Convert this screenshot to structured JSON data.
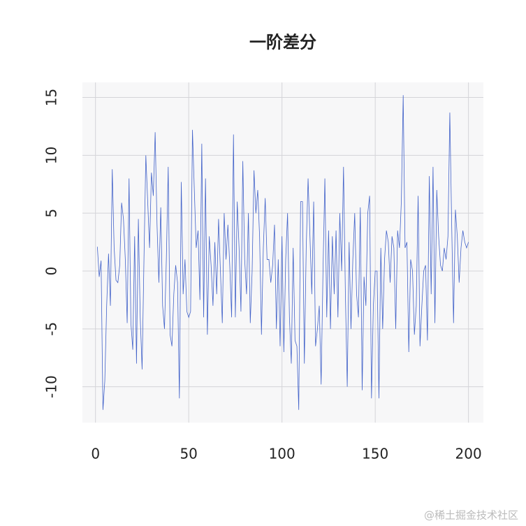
{
  "chart_data": {
    "type": "line",
    "title": "一阶差分",
    "watermark": "@稀土掘金技术社区",
    "x": [
      1,
      2,
      3,
      4,
      5,
      6,
      7,
      8,
      9,
      10,
      11,
      12,
      13,
      14,
      15,
      16,
      17,
      18,
      19,
      20,
      21,
      22,
      23,
      24,
      25,
      26,
      27,
      28,
      29,
      30,
      31,
      32,
      33,
      34,
      35,
      36,
      37,
      38,
      39,
      40,
      41,
      42,
      43,
      44,
      45,
      46,
      47,
      48,
      49,
      50,
      51,
      52,
      53,
      54,
      55,
      56,
      57,
      58,
      59,
      60,
      61,
      62,
      63,
      64,
      65,
      66,
      67,
      68,
      69,
      70,
      71,
      72,
      73,
      74,
      75,
      76,
      77,
      78,
      79,
      80,
      81,
      82,
      83,
      84,
      85,
      86,
      87,
      88,
      89,
      90,
      91,
      92,
      93,
      94,
      95,
      96,
      97,
      98,
      99,
      100,
      101,
      102,
      103,
      104,
      105,
      106,
      107,
      108,
      109,
      110,
      111,
      112,
      113,
      114,
      115,
      116,
      117,
      118,
      119,
      120,
      121,
      122,
      123,
      124,
      125,
      126,
      127,
      128,
      129,
      130,
      131,
      132,
      133,
      134,
      135,
      136,
      137,
      138,
      139,
      140,
      141,
      142,
      143,
      144,
      145,
      146,
      147,
      148,
      149,
      150,
      151,
      152,
      153,
      154,
      155,
      156,
      157,
      158,
      159,
      160,
      161,
      162,
      163,
      164,
      165,
      166,
      167,
      168,
      169,
      170,
      171,
      172,
      173,
      174,
      175,
      176,
      177,
      178,
      179,
      180,
      181,
      182,
      183,
      184,
      185,
      186,
      187,
      188,
      189,
      190,
      191,
      192,
      193,
      194,
      195,
      196,
      197,
      198,
      199,
      200
    ],
    "series": [
      {
        "color": "#4262c9",
        "values": [
          2.1,
          -0.5,
          0.9,
          -12.0,
          -9.5,
          -3.0,
          1.5,
          -3.0,
          8.8,
          2.0,
          -0.8,
          -1.0,
          0.5,
          5.9,
          4.5,
          1.0,
          -4.5,
          8.0,
          -4.5,
          -6.8,
          3.0,
          -8.0,
          4.5,
          -4.0,
          -8.5,
          1.0,
          10.0,
          6.0,
          2.0,
          8.5,
          6.5,
          12.0,
          4.0,
          -1.0,
          5.5,
          -3.0,
          -5.0,
          1.0,
          9.0,
          -5.5,
          -6.5,
          -2.0,
          0.5,
          -1.0,
          -11.0,
          7.7,
          -2.0,
          1.0,
          -3.5,
          -4.0,
          -3.5,
          12.2,
          7.0,
          2.0,
          3.5,
          -2.5,
          11.0,
          -4.0,
          8.0,
          -5.5,
          3.0,
          0.5,
          -3.0,
          2.5,
          -2.0,
          4.5,
          0.0,
          -4.5,
          5.0,
          1.0,
          4.0,
          0.5,
          -4.0,
          11.8,
          -4.0,
          6.0,
          2.0,
          -3.5,
          9.5,
          1.0,
          -2.0,
          5.0,
          -4.5,
          0.0,
          8.7,
          5.0,
          7.0,
          3.0,
          -5.5,
          2.0,
          6.3,
          1.0,
          1.0,
          -1.0,
          0.5,
          4.0,
          -5.0,
          1.0,
          -6.5,
          3.0,
          -7.0,
          1.0,
          5.0,
          -4.0,
          -8.0,
          2.0,
          -6.0,
          -6.5,
          -12.0,
          6.0,
          6.0,
          -8.0,
          2.0,
          8.0,
          3.0,
          -2.0,
          6.0,
          -6.5,
          -5.0,
          -3.0,
          -9.8,
          0.0,
          8.0,
          -4.0,
          3.5,
          -5.0,
          3.0,
          -2.0,
          3.5,
          -4.0,
          5.0,
          0.0,
          9.0,
          -2.0,
          -10.0,
          2.5,
          -5.0,
          1.0,
          5.0,
          -2.0,
          -4.0,
          5.5,
          -10.3,
          -0.5,
          -3.0,
          5.0,
          6.5,
          -11.0,
          -3.0,
          0.0,
          0.0,
          -11.0,
          2.0,
          -5.0,
          1.0,
          3.5,
          2.5,
          -1.0,
          3.0,
          2.0,
          -5.0,
          3.5,
          2.0,
          6.0,
          15.2,
          2.0,
          2.5,
          -7.0,
          1.0,
          0.0,
          -5.5,
          -3.0,
          6.5,
          -6.5,
          -3.0,
          0.0,
          0.5,
          -6.0,
          8.2,
          -2.0,
          9.0,
          -4.5,
          7.0,
          3.0,
          0.5,
          0.0,
          2.0,
          1.0,
          3.0,
          13.7,
          4.0,
          -4.5,
          5.3,
          3.0,
          -1.0,
          2.0,
          3.5,
          2.5,
          2.0,
          2.5
        ]
      }
    ],
    "xlim": [
      -7,
      208
    ],
    "ylim": [
      -13.1,
      16.3
    ],
    "xticks": [
      0,
      50,
      100,
      150,
      200
    ],
    "yticks": [
      -10,
      -5,
      0,
      5,
      10,
      15
    ],
    "grid": true
  }
}
